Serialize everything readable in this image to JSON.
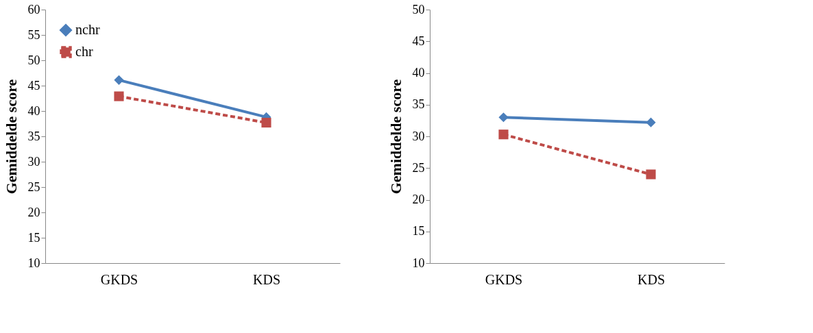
{
  "chart_data": [
    {
      "type": "line",
      "categories": [
        "GKDS",
        "KDS"
      ],
      "ylabel": "Gemiddelde score",
      "ylim": [
        10,
        60
      ],
      "yticks": [
        10,
        15,
        20,
        25,
        30,
        35,
        40,
        45,
        50,
        55,
        60
      ],
      "grid": false,
      "legend": "top left",
      "series": [
        {
          "name": "nchr",
          "color": "#4a7ebb",
          "marker": "diamond",
          "line_style": "solid",
          "values": [
            46.1,
            38.8
          ]
        },
        {
          "name": "chr",
          "color": "#be4b48",
          "marker": "square",
          "line_style": "dashed",
          "values": [
            42.9,
            37.7
          ]
        }
      ]
    },
    {
      "type": "line",
      "categories": [
        "GKDS",
        "KDS"
      ],
      "ylabel": "Gemiddelde score",
      "ylim": [
        10,
        50
      ],
      "yticks": [
        10,
        15,
        20,
        25,
        30,
        35,
        40,
        45,
        50
      ],
      "grid": false,
      "legend": "top left",
      "series": [
        {
          "name": "nchr",
          "color": "#4a7ebb",
          "marker": "diamond",
          "line_style": "solid",
          "values": [
            33.0,
            32.2
          ]
        },
        {
          "name": "chr",
          "color": "#be4b48",
          "marker": "square",
          "line_style": "dashed",
          "values": [
            30.3,
            24.0
          ]
        }
      ]
    }
  ]
}
